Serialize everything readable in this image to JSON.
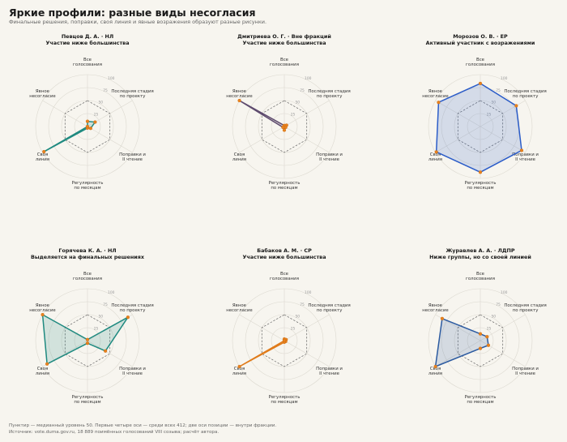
{
  "page": {
    "title": "Яркие профили: разные виды несогласия",
    "subtitle": "Финальные решения, поправки, своя линия и явные возражения образуют разные рисунки.",
    "footer_line1": "Пунктир — медианный уровень 50. Первые четыре оси — среди всех 412; две оси позиции — внутри фракции.",
    "footer_line2": "Источник: vote.duma.gov.ru, 18 889 поимённых голосований VIII созыва; расчёт автора."
  },
  "chart_data": {
    "type": "radar",
    "axes": [
      [
        "Все",
        "голосования"
      ],
      [
        "Последняя стадия",
        "по проекту"
      ],
      [
        "Поправки и",
        "II чтение"
      ],
      [
        "Регулярность",
        "по месяцам"
      ],
      [
        "Своя",
        "линия"
      ],
      [
        "Явное",
        "несогласие"
      ]
    ],
    "rlim": [
      0,
      100
    ],
    "ticks": [
      25,
      50,
      75,
      100
    ],
    "median_level": 50,
    "panels": [
      {
        "title": [
          "Певцов Д. А.  ·  НЛ",
          "Участие ниже большинства"
        ],
        "color": "#1f8a80",
        "values": [
          10,
          17,
          7,
          3,
          97,
          0
        ]
      },
      {
        "title": [
          "Дмитриева О. Г.  ·  Вне фракций",
          "Участие ниже большинства"
        ],
        "color": "#5e4b6e",
        "values": [
          2,
          5,
          3,
          7,
          3,
          100
        ]
      },
      {
        "title": [
          "Морозов О. В.  ·  ЕР",
          "Активный участник с возражениями"
        ],
        "color": "#2b5cc8",
        "values": [
          83,
          80,
          92,
          88,
          98,
          93
        ]
      },
      {
        "title": [
          "Горячева К. А.  ·  НЛ",
          "Выделяется на финальных решениях"
        ],
        "color": "#1f8a80",
        "values": [
          2,
          90,
          40,
          5,
          90,
          100
        ]
      },
      {
        "title": [
          "Бабаков А. М.  ·  СР",
          "Участие ниже большинства"
        ],
        "color": "#e07b1a",
        "values": [
          3,
          4,
          3,
          3,
          100,
          0
        ]
      },
      {
        "title": [
          "Журавлев А. А.  ·  ЛДПР",
          "Ниже группы, но со своей линией"
        ],
        "color": "#2b5aa0",
        "values": [
          13,
          15,
          18,
          15,
          100,
          85
        ]
      }
    ]
  }
}
